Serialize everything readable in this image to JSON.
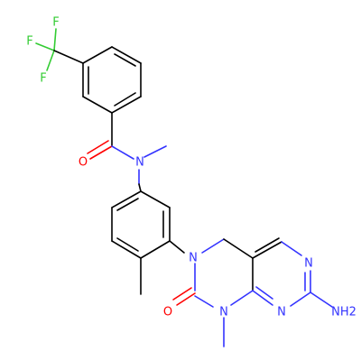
{
  "molecule": {
    "colors": {
      "carbon_bond": "#000000",
      "nitrogen": "#3333ff",
      "oxygen": "#ff0000",
      "fluorine": "#33cc33"
    },
    "labels": {
      "f1": "F",
      "f2": "F",
      "f3": "F",
      "o_amide": "O",
      "n_amide": "N",
      "n_ring3": "N",
      "o_urea": "O",
      "n_ring1": "N",
      "n_pyr_top": "N",
      "n_pyr_bottom": "N",
      "nh2": "NH2"
    }
  }
}
